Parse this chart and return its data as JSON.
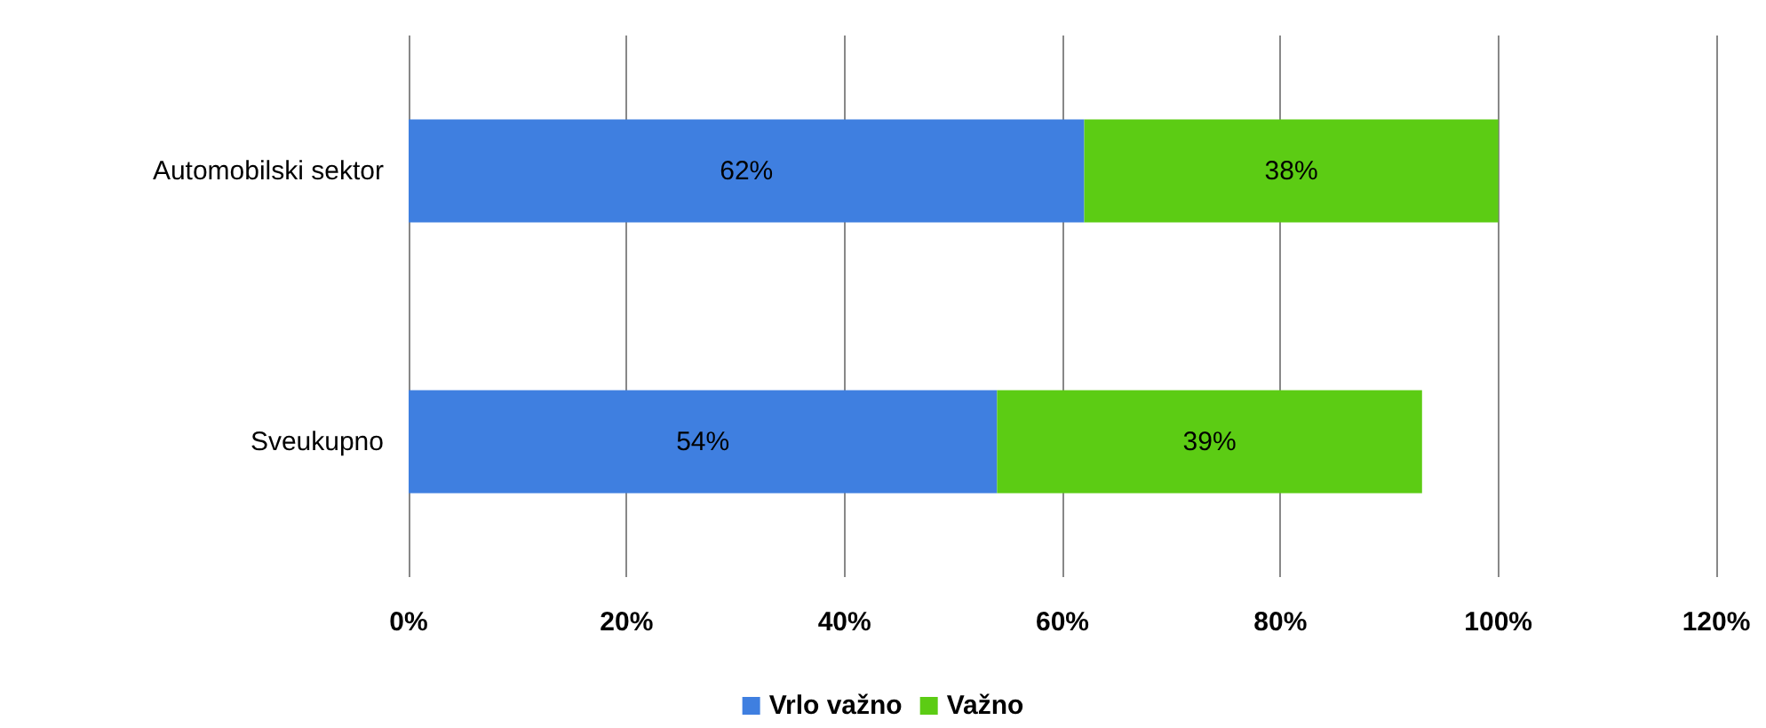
{
  "chart_data": {
    "type": "bar",
    "orientation": "horizontal",
    "stacked": true,
    "categories": [
      "Automobilski sektor",
      "Sveukupno"
    ],
    "series": [
      {
        "name": "Vrlo važno",
        "color": "#3f7fe0",
        "values": [
          62,
          54
        ],
        "value_labels": [
          "62%",
          "54%"
        ]
      },
      {
        "name": "Važno",
        "color": "#5ccc14",
        "values": [
          38,
          39
        ],
        "value_labels": [
          "38%",
          "39%"
        ]
      }
    ],
    "xlim": [
      0,
      120
    ],
    "xticks": [
      {
        "value": 0,
        "label": "0%"
      },
      {
        "value": 20,
        "label": "20%"
      },
      {
        "value": 40,
        "label": "40%"
      },
      {
        "value": 60,
        "label": "60%"
      },
      {
        "value": 80,
        "label": "80%"
      },
      {
        "value": 100,
        "label": "100%"
      },
      {
        "value": 120,
        "label": "120%"
      }
    ],
    "grid": "x",
    "legend": "bottom"
  }
}
